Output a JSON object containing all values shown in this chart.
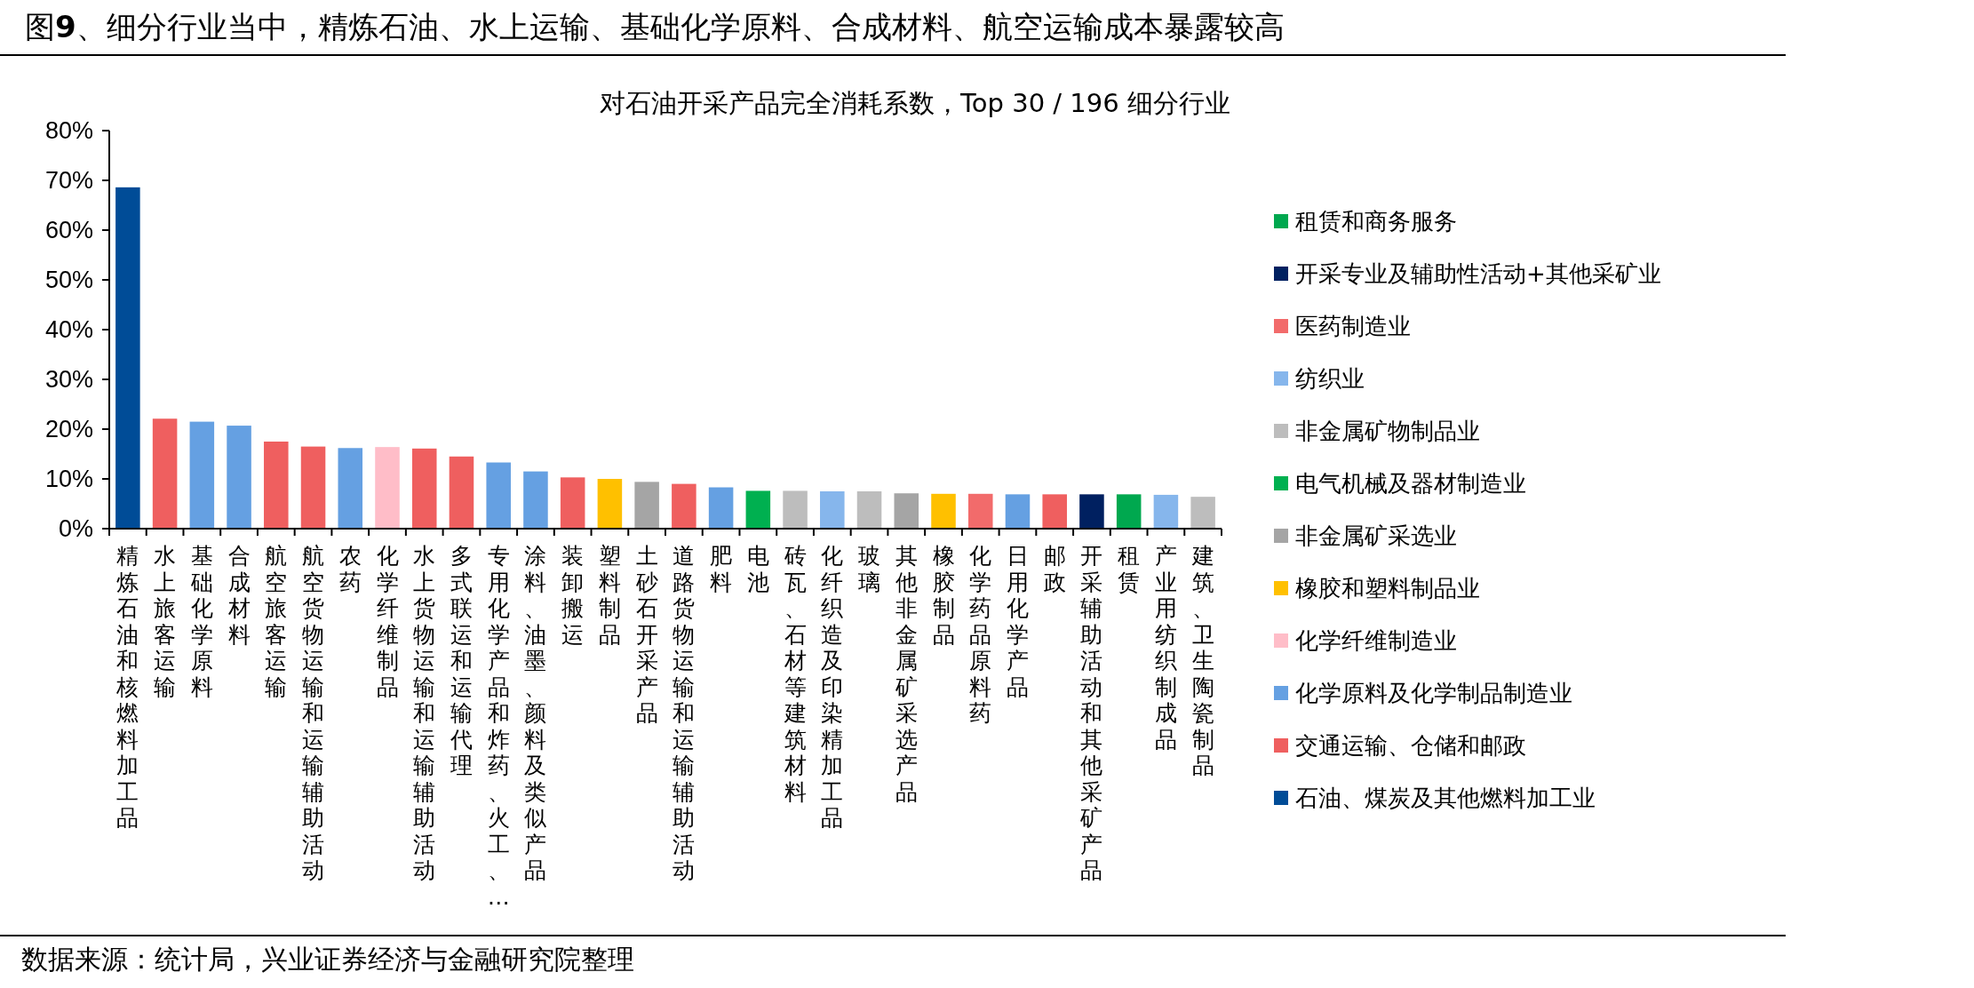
{
  "chart_data": {
    "type": "bar",
    "title": "图**9**、细分行业当中，精炼石油、水上运输、基础化学原料、合成材料、航空运输成本暴露较高",
    "subtitle": "对石油开采产品完全消耗系数，Top 30 / 196 细分行业",
    "categories": [
      "精炼石油和核燃料加工品",
      "水上旅客运输",
      "基础化学原料",
      "合成材料",
      "航空旅客运输",
      "航空货物运输和运输辅助活动",
      "农药",
      "化学纤维制品",
      "水上货物运输和运输辅助活动",
      "多式联运和运输代理",
      "专用化学产品和炸药、火工、…",
      "涂料、油墨、颜料及类似产品",
      "装卸搬运",
      "塑料制品",
      "土砂石开采产品",
      "道路货物运输和运输辅助活动",
      "肥料",
      "电池",
      "砖瓦、石材等建筑材料",
      "化纤织造及印染精加工品",
      "玻璃",
      "其他非金属矿采选产品",
      "橡胶制品",
      "化学药品原料药",
      "日用化学产品",
      "邮政",
      "开采辅助活动和其他采矿产品",
      "租赁",
      "产业用纺织制成品",
      "建筑、卫生陶瓷制品"
    ],
    "series": [
      {
        "name": "租赁和商务服务",
        "color": "#00a84f",
        "values": [
          null,
          null,
          null,
          null,
          null,
          null,
          null,
          null,
          null,
          null,
          null,
          null,
          null,
          null,
          null,
          null,
          null,
          null,
          null,
          null,
          null,
          null,
          null,
          null,
          null,
          null,
          null,
          6.9,
          null,
          null
        ]
      },
      {
        "name": "开采专业及辅助性活动+其他采矿业",
        "color": "#002060",
        "values": [
          null,
          null,
          null,
          null,
          null,
          null,
          null,
          null,
          null,
          null,
          null,
          null,
          null,
          null,
          null,
          null,
          null,
          null,
          null,
          null,
          null,
          null,
          null,
          null,
          null,
          null,
          6.9,
          null,
          null,
          null
        ]
      },
      {
        "name": "医药制造业",
        "color": "#f26b6b",
        "values": [
          null,
          null,
          null,
          null,
          null,
          null,
          null,
          null,
          null,
          null,
          null,
          null,
          null,
          null,
          null,
          null,
          null,
          null,
          null,
          null,
          null,
          null,
          null,
          7.0,
          null,
          null,
          null,
          null,
          null,
          null
        ]
      },
      {
        "name": "纺织业",
        "color": "#86b6ec",
        "values": [
          null,
          null,
          null,
          null,
          null,
          null,
          null,
          null,
          null,
          null,
          null,
          null,
          null,
          null,
          null,
          null,
          null,
          null,
          null,
          7.5,
          null,
          null,
          null,
          null,
          null,
          null,
          null,
          null,
          6.8,
          null
        ]
      },
      {
        "name": "非金属矿物制品业",
        "color": "#bdbdbd",
        "values": [
          null,
          null,
          null,
          null,
          null,
          null,
          null,
          null,
          null,
          null,
          null,
          null,
          null,
          null,
          null,
          null,
          null,
          null,
          7.6,
          null,
          7.5,
          null,
          null,
          null,
          null,
          null,
          null,
          null,
          null,
          6.4
        ]
      },
      {
        "name": "电气机械及器材制造业",
        "color": "#00b050",
        "values": [
          null,
          null,
          null,
          null,
          null,
          null,
          null,
          null,
          null,
          null,
          null,
          null,
          null,
          null,
          null,
          null,
          null,
          7.6,
          null,
          null,
          null,
          null,
          null,
          null,
          null,
          null,
          null,
          null,
          null,
          null
        ]
      },
      {
        "name": "非金属矿采选业",
        "color": "#a5a5a5",
        "values": [
          null,
          null,
          null,
          null,
          null,
          null,
          null,
          null,
          null,
          null,
          null,
          null,
          null,
          null,
          9.4,
          null,
          null,
          null,
          null,
          null,
          null,
          7.1,
          null,
          null,
          null,
          null,
          null,
          null,
          null,
          null
        ]
      },
      {
        "name": "橡胶和塑料制品业",
        "color": "#ffc000",
        "values": [
          null,
          null,
          null,
          null,
          null,
          null,
          null,
          null,
          null,
          null,
          null,
          null,
          null,
          10.0,
          null,
          null,
          null,
          null,
          null,
          null,
          null,
          null,
          7.0,
          null,
          null,
          null,
          null,
          null,
          null,
          null
        ]
      },
      {
        "name": "化学纤维制造业",
        "color": "#ffbdc8",
        "values": [
          null,
          null,
          null,
          null,
          null,
          null,
          null,
          16.4,
          null,
          null,
          null,
          null,
          null,
          null,
          null,
          null,
          null,
          null,
          null,
          null,
          null,
          null,
          null,
          null,
          null,
          null,
          null,
          null,
          null,
          null
        ]
      },
      {
        "name": "化学原料及化学制品制造业",
        "color": "#65a0e2",
        "values": [
          null,
          null,
          21.5,
          20.7,
          null,
          null,
          16.2,
          null,
          null,
          null,
          13.3,
          11.5,
          null,
          null,
          null,
          null,
          8.3,
          null,
          null,
          null,
          null,
          null,
          null,
          null,
          6.9,
          null,
          null,
          null,
          null,
          null
        ]
      },
      {
        "name": "交通运输、仓储和邮政",
        "color": "#ef5f5f",
        "values": [
          null,
          22.1,
          null,
          null,
          17.5,
          16.5,
          null,
          null,
          16.1,
          14.5,
          null,
          null,
          10.3,
          null,
          null,
          9.0,
          null,
          null,
          null,
          null,
          null,
          null,
          null,
          null,
          null,
          6.9,
          null,
          null,
          null,
          null
        ]
      },
      {
        "name": "石油、煤炭及其他燃料加工业",
        "color": "#004c97",
        "values": [
          68.6,
          null,
          null,
          null,
          null,
          null,
          null,
          null,
          null,
          null,
          null,
          null,
          null,
          null,
          null,
          null,
          null,
          null,
          null,
          null,
          null,
          null,
          null,
          null,
          null,
          null,
          null,
          null,
          null,
          null
        ]
      }
    ],
    "ylim": [
      0,
      80
    ],
    "yticks": [
      {
        "value": 0,
        "label": "0%"
      },
      {
        "value": 10,
        "label": "10%"
      },
      {
        "value": 20,
        "label": "20%"
      },
      {
        "value": 30,
        "label": "30%"
      },
      {
        "value": 40,
        "label": "40%"
      },
      {
        "value": 50,
        "label": "50%"
      },
      {
        "value": 60,
        "label": "60%"
      },
      {
        "value": 70,
        "label": "70%"
      },
      {
        "value": 80,
        "label": "80%"
      }
    ],
    "legend": "right",
    "grid": false,
    "annotations": [
      "数据来源：统计局，兴业证券经济与金融研究院整理"
    ]
  }
}
